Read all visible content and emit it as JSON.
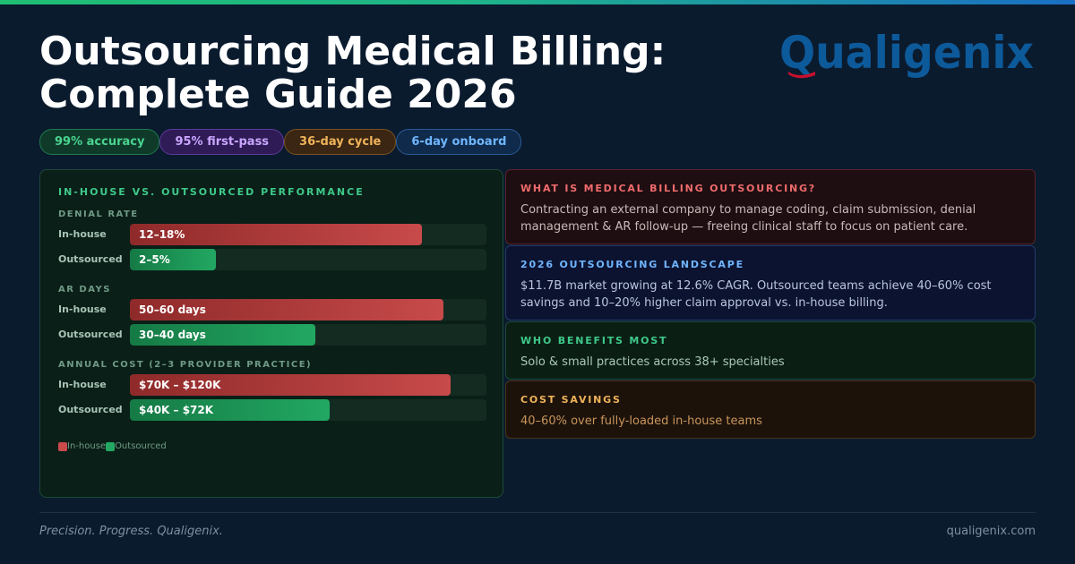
{
  "header": {
    "title_line1": "Outsourcing Medical Billing:",
    "title_line2": "Complete Guide 2026",
    "brand": "Qualigenix"
  },
  "pills": [
    {
      "label": "99% accuracy"
    },
    {
      "label": "95% first-pass"
    },
    {
      "label": "36-day cycle"
    },
    {
      "label": "6-day onboard"
    }
  ],
  "chart_data": {
    "type": "bar",
    "orientation": "horizontal",
    "title": "IN-HOUSE VS. OUTSOURCED PERFORMANCE",
    "legend": {
      "position": "bottom-left",
      "items": [
        "In-house",
        "Outsourced"
      ]
    },
    "series_colors": {
      "In-house": "#c84a4a",
      "Outsourced": "#22a862"
    },
    "groups": [
      {
        "label": "DENIAL RATE",
        "bars": [
          {
            "series": "In-house",
            "label": "12–18%",
            "fill_fraction": 0.82
          },
          {
            "series": "Outsourced",
            "label": "2–5%",
            "fill_fraction": 0.24
          }
        ]
      },
      {
        "label": "AR DAYS",
        "bars": [
          {
            "series": "In-house",
            "label": "50–60 days",
            "fill_fraction": 0.88
          },
          {
            "series": "Outsourced",
            "label": "30–40 days",
            "fill_fraction": 0.52
          }
        ]
      },
      {
        "label": "ANNUAL COST (2–3 PROVIDER PRACTICE)",
        "bars": [
          {
            "series": "In-house",
            "label": "$70K – $120K",
            "fill_fraction": 0.9
          },
          {
            "series": "Outsourced",
            "label": "$40K – $72K",
            "fill_fraction": 0.56
          }
        ]
      }
    ]
  },
  "cards": [
    {
      "title": "WHAT IS MEDICAL BILLING OUTSOURCING?",
      "body": "Contracting an external company to manage coding, claim submission, denial management & AR follow-up — freeing clinical staff to focus on patient care."
    },
    {
      "title": "2026 OUTSOURCING LANDSCAPE",
      "body": "$11.7B market growing at 12.6% CAGR. Outsourced teams achieve 40–60% cost savings and 10–20% higher claim approval vs. in-house billing."
    },
    {
      "title": "WHO BENEFITS MOST",
      "body": "Solo & small practices across 38+ specialties"
    },
    {
      "title": "COST SAVINGS",
      "body": "40–60% over fully-loaded in-house teams"
    }
  ],
  "footer": {
    "tagline": "Precision. Progress. Qualigenix.",
    "site": "qualigenix.com"
  },
  "colors": {
    "background": "#0b1b2e",
    "brand_blue": "#0d5a9a",
    "brand_red": "#c8102e"
  }
}
